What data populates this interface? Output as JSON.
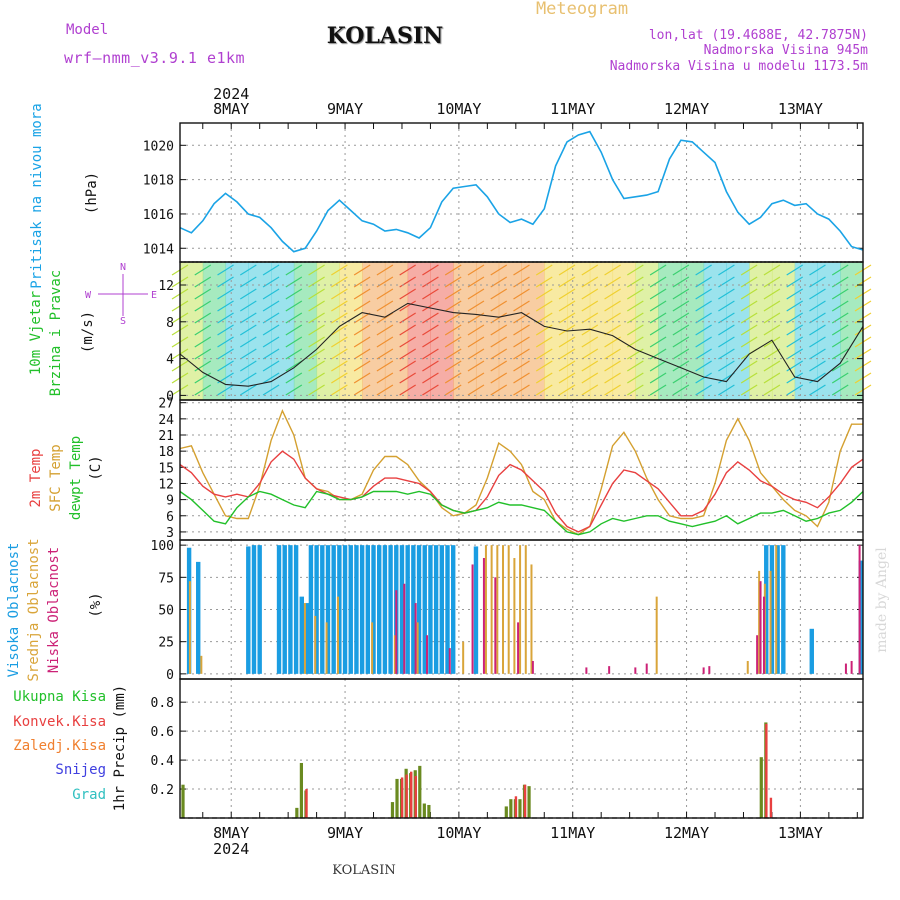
{
  "header": {
    "model_label": "Model",
    "model_name": "wrf—nmm_v3.9.1  e1km",
    "station_title": "KOLASIN",
    "meteogram_label": "Meteogram",
    "lonlat": "lon,lat (19.4688E, 42.7875N)",
    "altitude": "Nadmorska Visina 945m",
    "model_altitude": "Nadmorska Visina u modelu 1173.5m",
    "year_top": "2024",
    "year_bottom": "2024",
    "footer_station": "KOLASIN",
    "credit": "made by Angel"
  },
  "colors": {
    "pressure": "#1aa3e6",
    "temp2m": "#e84040",
    "sfc": "#d4a030",
    "dewpt": "#22c02a",
    "high_cloud": "#1a9de2",
    "mid_cloud": "#d9a53a",
    "low_cloud": "#cc2277",
    "precip_total": "#6a8a20",
    "precip_conv": "#e84040",
    "frozen": "#f08030",
    "snow": "#4040e0",
    "grad": "#30c0c0",
    "purple": "#b040d0"
  },
  "panels": {
    "pressure": {
      "label": "Pritisak na nivou mora",
      "unit": "(hPa)"
    },
    "wind": {
      "label1": "10m Vjetar",
      "label2": "Brzina i Pravac",
      "unit": "(m/s)",
      "compass_n": "N",
      "compass_e": "E",
      "compass_w": "W",
      "compass_s": "S"
    },
    "temp": {
      "label1": "2m Temp",
      "label2": "SFC Temp",
      "label3": "dewpt Temp",
      "unit": "(C)"
    },
    "cloud": {
      "label1": "Visoka Oblacnost",
      "label2": "Srednja Oblacnost",
      "label3": "Niska Oblacnost",
      "unit": "(%)"
    },
    "precip": {
      "label1": "Ukupna Kisa",
      "label2": "Konvek.Kisa",
      "label3": "Zaledj.Kisa",
      "label4": "Snijeg",
      "label5": "Grad",
      "unit": "1hr Precip (mm)"
    }
  },
  "chart_data": {
    "type": "line",
    "x_unit": "day of May 2024 (fractional)",
    "x_range": [
      7.55,
      13.55
    ],
    "day_labels": [
      "8MAY",
      "9MAY",
      "10MAY",
      "11MAY",
      "12MAY",
      "13MAY"
    ],
    "day_positions": [
      8,
      9,
      10,
      11,
      12,
      13
    ],
    "pressure": {
      "ylim": [
        1013.2,
        1021.3
      ],
      "yticks": [
        1014,
        1016,
        1018,
        1020
      ],
      "x": [
        7.55,
        7.65,
        7.75,
        7.85,
        7.95,
        8.05,
        8.15,
        8.25,
        8.35,
        8.45,
        8.55,
        8.65,
        8.75,
        8.85,
        8.95,
        9.05,
        9.15,
        9.25,
        9.35,
        9.45,
        9.55,
        9.65,
        9.75,
        9.85,
        9.95,
        10.05,
        10.15,
        10.25,
        10.35,
        10.45,
        10.55,
        10.65,
        10.75,
        10.85,
        10.95,
        11.05,
        11.15,
        11.25,
        11.35,
        11.45,
        11.55,
        11.65,
        11.75,
        11.85,
        11.95,
        12.05,
        12.15,
        12.25,
        12.35,
        12.45,
        12.55,
        12.65,
        12.75,
        12.85,
        12.95,
        13.05,
        13.15,
        13.25,
        13.35,
        13.45,
        13.55
      ],
      "values": [
        1015.2,
        1014.9,
        1015.6,
        1016.6,
        1017.2,
        1016.7,
        1016.0,
        1015.8,
        1015.2,
        1014.4,
        1013.8,
        1014.0,
        1015.0,
        1016.2,
        1016.8,
        1016.2,
        1015.6,
        1015.4,
        1015.0,
        1015.1,
        1014.9,
        1014.6,
        1015.2,
        1016.7,
        1017.5,
        1017.6,
        1017.7,
        1017.0,
        1016.0,
        1015.5,
        1015.7,
        1015.4,
        1016.3,
        1018.8,
        1020.2,
        1020.6,
        1020.8,
        1019.6,
        1018.0,
        1016.9,
        1017.0,
        1017.1,
        1017.3,
        1019.2,
        1020.3,
        1020.2,
        1019.6,
        1019.0,
        1017.3,
        1016.1,
        1015.4,
        1015.8,
        1016.6,
        1016.8,
        1016.5,
        1016.6,
        1016.0,
        1015.7,
        1015.0,
        1014.1,
        1013.9
      ]
    },
    "wind": {
      "ylim": [
        -0.5,
        14.5
      ],
      "yticks": [
        0,
        4,
        8,
        12
      ],
      "x": [
        7.55,
        7.75,
        7.95,
        8.15,
        8.35,
        8.55,
        8.75,
        8.95,
        9.15,
        9.35,
        9.55,
        9.75,
        9.95,
        10.15,
        10.35,
        10.55,
        10.75,
        10.95,
        11.15,
        11.35,
        11.55,
        11.75,
        11.95,
        12.15,
        12.35,
        12.55,
        12.75,
        12.95,
        13.15,
        13.35,
        13.55
      ],
      "speed": [
        4.5,
        2.5,
        1.2,
        1.0,
        1.5,
        3.0,
        5.0,
        7.5,
        9.0,
        8.5,
        10.0,
        9.5,
        9.0,
        8.8,
        8.5,
        9.0,
        7.5,
        7.0,
        7.2,
        6.5,
        5.0,
        4.0,
        3.0,
        2.0,
        1.5,
        4.5,
        6.0,
        2.0,
        1.5,
        3.5,
        7.5
      ]
    },
    "temperature": {
      "ylim": [
        1.5,
        27.5
      ],
      "yticks": [
        3,
        6,
        9,
        12,
        15,
        18,
        21,
        24,
        27
      ],
      "x": [
        7.55,
        7.65,
        7.75,
        7.85,
        7.95,
        8.05,
        8.15,
        8.25,
        8.35,
        8.45,
        8.55,
        8.65,
        8.75,
        8.85,
        8.95,
        9.05,
        9.15,
        9.25,
        9.35,
        9.45,
        9.55,
        9.65,
        9.75,
        9.85,
        9.95,
        10.05,
        10.15,
        10.25,
        10.35,
        10.45,
        10.55,
        10.65,
        10.75,
        10.85,
        10.95,
        11.05,
        11.15,
        11.25,
        11.35,
        11.45,
        11.55,
        11.65,
        11.75,
        11.85,
        11.95,
        12.05,
        12.15,
        12.25,
        12.35,
        12.45,
        12.55,
        12.65,
        12.75,
        12.85,
        12.95,
        13.05,
        13.15,
        13.25,
        13.35,
        13.45,
        13.55
      ],
      "t2m": [
        15.5,
        14.0,
        11.5,
        10.0,
        9.5,
        10.0,
        9.5,
        12.0,
        16.0,
        18.0,
        16.5,
        13.0,
        11.0,
        10.0,
        9.5,
        9.0,
        9.5,
        11.5,
        13.0,
        13.0,
        12.5,
        12.0,
        10.5,
        8.0,
        7.0,
        6.5,
        7.0,
        9.5,
        13.5,
        15.5,
        14.5,
        12.5,
        10.5,
        6.5,
        4.0,
        3.0,
        4.0,
        8.0,
        12.0,
        14.5,
        14.0,
        12.5,
        11.0,
        8.5,
        6.0,
        6.0,
        7.0,
        10.0,
        14.0,
        16.0,
        14.5,
        12.5,
        11.5,
        10.0,
        9.0,
        8.5,
        7.5,
        9.5,
        12.0,
        15.0,
        16.5
      ],
      "sfc": [
        18.5,
        19.0,
        14.0,
        10.0,
        6.0,
        5.5,
        5.5,
        11.5,
        20.0,
        25.5,
        21.0,
        13.0,
        11.0,
        10.5,
        9.0,
        9.0,
        10.0,
        14.5,
        17.0,
        17.0,
        15.5,
        12.5,
        10.5,
        7.5,
        6.0,
        6.5,
        8.0,
        13.0,
        19.5,
        18.0,
        15.5,
        10.5,
        9.0,
        5.0,
        3.5,
        2.5,
        4.0,
        11.0,
        19.0,
        21.5,
        18.0,
        13.0,
        9.0,
        6.0,
        5.5,
        5.5,
        6.0,
        12.0,
        20.0,
        24.0,
        20.0,
        14.0,
        11.5,
        9.0,
        7.0,
        6.0,
        4.0,
        8.5,
        18.0,
        23.0,
        23.0
      ],
      "dew": [
        10.5,
        9.0,
        7.0,
        5.0,
        4.5,
        7.5,
        9.5,
        10.5,
        10.0,
        9.0,
        8.0,
        7.5,
        10.5,
        10.0,
        9.0,
        9.0,
        9.5,
        10.5,
        10.5,
        10.5,
        10.0,
        10.5,
        10.0,
        8.0,
        7.0,
        6.5,
        7.0,
        7.5,
        8.5,
        8.0,
        8.0,
        7.5,
        7.0,
        5.0,
        3.0,
        2.5,
        3.0,
        4.5,
        5.5,
        5.0,
        5.5,
        6.0,
        6.0,
        5.0,
        4.5,
        4.0,
        4.5,
        5.0,
        6.0,
        4.5,
        5.5,
        6.5,
        6.5,
        7.0,
        6.0,
        5.0,
        5.5,
        6.5,
        7.0,
        8.5,
        10.5
      ]
    },
    "clouds": {
      "ylim": [
        -4,
        104
      ],
      "yticks": [
        0,
        25,
        50,
        75,
        100
      ],
      "high": [
        {
          "x": [
            7.63,
            7.71,
            8.15,
            8.2,
            8.25,
            8.42,
            8.47,
            8.52,
            8.57,
            8.62,
            8.67
          ],
          "v": [
            98,
            87,
            99,
            100,
            100,
            100,
            100,
            100,
            100,
            60,
            55
          ]
        },
        {
          "x": [
            8.7,
            8.75,
            8.8,
            8.85,
            8.9,
            8.95,
            9.0,
            9.05,
            9.1,
            9.15,
            9.2,
            9.25,
            9.3,
            9.35,
            9.4,
            9.45,
            9.5,
            9.55,
            9.6,
            9.65,
            9.7,
            9.75,
            9.8,
            9.85,
            9.9,
            9.95
          ],
          "v": [
            100,
            100,
            100,
            100,
            100,
            100,
            100,
            100,
            100,
            100,
            100,
            100,
            100,
            100,
            100,
            100,
            100,
            100,
            100,
            100,
            100,
            100,
            100,
            100,
            100,
            100
          ]
        },
        {
          "x": [
            10.15,
            12.7,
            12.75,
            12.8,
            12.85,
            13.1,
            13.53
          ],
          "v": [
            99,
            100,
            100,
            100,
            100,
            35,
            88
          ]
        }
      ],
      "mid": {
        "x": [
          7.62,
          7.72,
          8.63,
          8.72,
          8.82,
          8.92,
          9.22,
          9.42,
          9.62,
          10.02,
          10.22,
          10.27,
          10.32,
          10.37,
          10.42,
          10.47,
          10.52,
          10.57,
          10.62,
          11.72,
          12.52,
          12.62,
          12.67,
          12.72,
          12.77
        ],
        "v": [
          72,
          14,
          55,
          45,
          40,
          60,
          40,
          30,
          40,
          25,
          100,
          100,
          100,
          100,
          100,
          90,
          100,
          100,
          85,
          60,
          10,
          80,
          70,
          80,
          100
        ]
      },
      "low": {
        "x": [
          9.45,
          9.52,
          9.62,
          9.72,
          9.92,
          10.12,
          10.22,
          10.32,
          10.52,
          10.65,
          11.12,
          11.32,
          11.55,
          11.65,
          12.15,
          12.2,
          12.62,
          12.65,
          12.68,
          13.4,
          13.45,
          13.52
        ],
        "v": [
          65,
          70,
          55,
          30,
          20,
          85,
          90,
          75,
          40,
          10,
          5,
          6,
          5,
          8,
          5,
          6,
          30,
          72,
          60,
          8,
          10,
          100
        ]
      }
    },
    "precipitation": {
      "ylim": [
        0,
        0.96
      ],
      "yticks": [
        0.2,
        0.4,
        0.6,
        0.8
      ],
      "total": {
        "x": [
          7.58,
          8.58,
          8.62,
          8.66,
          9.42,
          9.46,
          9.5,
          9.54,
          9.58,
          9.62,
          9.66,
          9.7,
          9.74,
          10.42,
          10.46,
          10.5,
          10.54,
          10.58,
          10.62,
          12.66,
          12.7
        ],
        "v": [
          0.23,
          0.07,
          0.38,
          0.19,
          0.11,
          0.27,
          0.27,
          0.34,
          0.31,
          0.33,
          0.36,
          0.1,
          0.09,
          0.08,
          0.13,
          0.13,
          0.13,
          0.23,
          0.22,
          0.42,
          0.66
        ]
      },
      "convective": {
        "x": [
          8.64,
          9.48,
          9.52,
          9.56,
          9.6,
          10.48,
          10.56,
          12.68,
          12.72
        ],
        "v": [
          0.2,
          0.28,
          0.3,
          0.32,
          0.29,
          0.15,
          0.23,
          0.65,
          0.14
        ]
      }
    }
  }
}
